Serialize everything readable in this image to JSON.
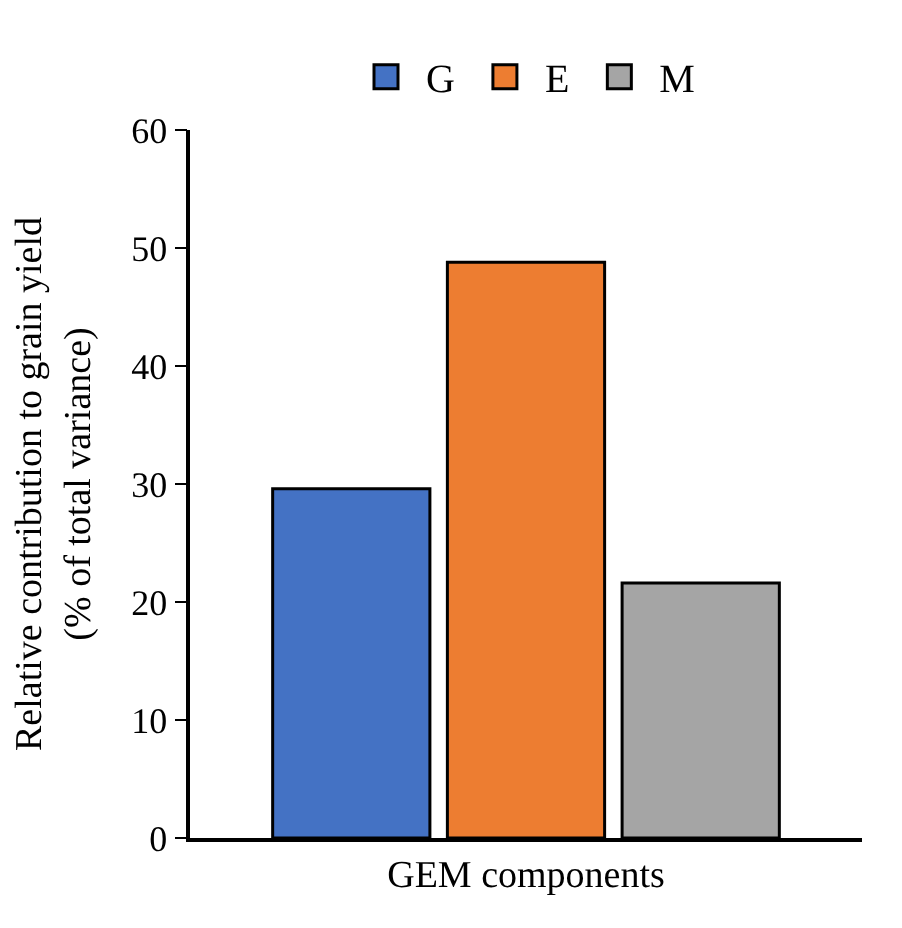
{
  "chart_data": {
    "type": "bar",
    "xlabel": "GEM components",
    "ylabel": "Relative contribution to grain yield\n(% of total variance)",
    "categories": [
      null
    ],
    "series": [
      {
        "name": "G",
        "color": "#4472c4",
        "values": [
          29.6
        ]
      },
      {
        "name": "E",
        "color": "#ed7d31",
        "values": [
          48.8
        ]
      },
      {
        "name": "M",
        "color": "#a5a5a5",
        "values": [
          21.6
        ]
      }
    ],
    "ylim": [
      0,
      60
    ],
    "yticks": [
      0,
      10,
      20,
      30,
      40,
      50,
      60
    ],
    "legend": "top"
  }
}
